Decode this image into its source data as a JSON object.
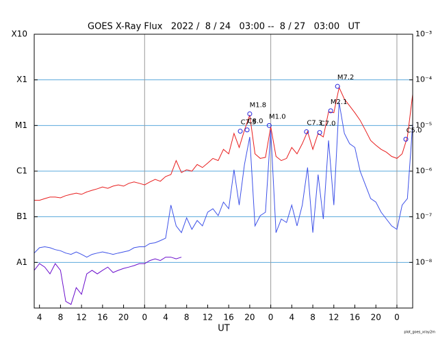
{
  "chart_data": {
    "type": "line",
    "title": "GOES X-Ray Flux   2022 /  8 / 24   03:00 --  8 / 27   03:00   UT",
    "xlabel": "UT",
    "footnote": "plot_goes_xray2m",
    "log_scale": true,
    "grid": true,
    "xlim": [
      0,
      72
    ],
    "xticks": [
      {
        "value": 1,
        "label": "4"
      },
      {
        "value": 5,
        "label": "8"
      },
      {
        "value": 9,
        "label": "12"
      },
      {
        "value": 13,
        "label": "16"
      },
      {
        "value": 17,
        "label": "20"
      },
      {
        "value": 21,
        "label": "0"
      },
      {
        "value": 25,
        "label": "4"
      },
      {
        "value": 29,
        "label": "8"
      },
      {
        "value": 33,
        "label": "12"
      },
      {
        "value": 37,
        "label": "16"
      },
      {
        "value": 41,
        "label": "20"
      },
      {
        "value": 45,
        "label": "0"
      },
      {
        "value": 49,
        "label": "4"
      },
      {
        "value": 53,
        "label": "8"
      },
      {
        "value": 57,
        "label": "12"
      },
      {
        "value": 61,
        "label": "16"
      },
      {
        "value": 65,
        "label": "20"
      },
      {
        "value": 69,
        "label": "0"
      }
    ],
    "ylim": [
      1e-09,
      0.001
    ],
    "yticks": [
      {
        "value": 0.001,
        "label": "X10"
      },
      {
        "value": 0.0001,
        "label": "X1"
      },
      {
        "value": 1e-05,
        "label": "M1"
      },
      {
        "value": 1e-06,
        "label": "C1"
      },
      {
        "value": 1e-07,
        "label": "B1"
      },
      {
        "value": 1e-08,
        "label": "A1"
      }
    ],
    "y2lim": [
      1e-09,
      0.001
    ],
    "y2ticks": [
      {
        "value": 0.001,
        "label": "10⁻³"
      },
      {
        "value": 0.0001,
        "label": "10⁻⁴"
      },
      {
        "value": 1e-05,
        "label": "10⁻⁵"
      },
      {
        "value": 1e-06,
        "label": "10⁻⁶"
      },
      {
        "value": 1e-07,
        "label": "10⁻⁷"
      },
      {
        "value": 1e-08,
        "label": "10⁻⁸"
      }
    ],
    "series": [
      {
        "color": "#e81c1c",
        "x": [
          0,
          1,
          2,
          3,
          4,
          5,
          6,
          7,
          8,
          9,
          10,
          11,
          12,
          13,
          14,
          15,
          16,
          17,
          18,
          19,
          20,
          21,
          22,
          23,
          24,
          25,
          26,
          27,
          28,
          29,
          30,
          31,
          32,
          33,
          34,
          35,
          36,
          37,
          38,
          39,
          40,
          41,
          42,
          43,
          44,
          45,
          46,
          47,
          48,
          49,
          50,
          51,
          52,
          53,
          54,
          55,
          56,
          57,
          58,
          59,
          60,
          61,
          62,
          63,
          64,
          65,
          66,
          67,
          68,
          69,
          70,
          71,
          72
        ],
        "values": [
          2.3e-07,
          2.3e-07,
          2.5e-07,
          2.7e-07,
          2.7e-07,
          2.6e-07,
          2.9e-07,
          3.1e-07,
          3.3e-07,
          3.1e-07,
          3.5e-07,
          3.8e-07,
          4.1e-07,
          4.5e-07,
          4.2e-07,
          4.7e-07,
          5e-07,
          4.7e-07,
          5.4e-07,
          5.8e-07,
          5.4e-07,
          5e-07,
          5.8e-07,
          6.6e-07,
          6e-07,
          7.6e-07,
          8.4e-07,
          1.7e-06,
          9.3e-07,
          1.07e-06,
          1e-06,
          1.4e-06,
          1.2e-06,
          1.5e-06,
          1.9e-06,
          1.7e-06,
          3e-06,
          2.4e-06,
          6.7e-06,
          3.3e-06,
          7.9e-06,
          1.7e-05,
          2.4e-06,
          1.9e-06,
          2e-06,
          9.4e-06,
          2.1e-06,
          1.7e-06,
          1.9e-06,
          3.3e-06,
          2.4e-06,
          4e-06,
          7.4e-06,
          3e-06,
          6.7e-06,
          5.6e-06,
          2e-05,
          1.9e-05,
          6.8e-05,
          3.8e-05,
          2.7e-05,
          1.9e-05,
          1.3e-05,
          7.9e-06,
          4.7e-06,
          3.7e-06,
          3e-06,
          2.6e-06,
          2.1e-06,
          1.9e-06,
          2.4e-06,
          5.6e-06,
          4.8e-05
        ]
      },
      {
        "color": "#3c50e8",
        "x": [
          0,
          1,
          2,
          3,
          4,
          5,
          6,
          7,
          8,
          9,
          10,
          11,
          12,
          13,
          14,
          15,
          16,
          17,
          18,
          19,
          20,
          21,
          22,
          23,
          24,
          25,
          26,
          27,
          28,
          29,
          30,
          31,
          32,
          33,
          34,
          35,
          36,
          37,
          38,
          39,
          40,
          41,
          42,
          43,
          44,
          45,
          46,
          47,
          48,
          49,
          50,
          51,
          52,
          53,
          54,
          55,
          56,
          57,
          58,
          59,
          60,
          61,
          62,
          63,
          64,
          65,
          66,
          67,
          68,
          69,
          70,
          71,
          72
        ],
        "values": [
          1.6e-08,
          2.1e-08,
          2.2e-08,
          2.1e-08,
          1.9e-08,
          1.8e-08,
          1.6e-08,
          1.5e-08,
          1.7e-08,
          1.5e-08,
          1.3e-08,
          1.5e-08,
          1.6e-08,
          1.7e-08,
          1.6e-08,
          1.5e-08,
          1.6e-08,
          1.7e-08,
          1.8e-08,
          2.1e-08,
          2.2e-08,
          2.2e-08,
          2.6e-08,
          2.7e-08,
          3e-08,
          3.4e-08,
          1.8e-07,
          6.3e-08,
          4.5e-08,
          9.5e-08,
          5.3e-08,
          8.3e-08,
          6.3e-08,
          1.26e-07,
          1.5e-07,
          1.06e-07,
          2.1e-07,
          1.5e-07,
          1.07e-06,
          1.8e-07,
          1.4e-06,
          5.6e-06,
          6.3e-08,
          1.06e-07,
          1.26e-07,
          7.9e-06,
          4.5e-08,
          8.9e-08,
          7.5e-08,
          1.8e-07,
          6.3e-08,
          1.8e-07,
          1.2e-06,
          4.5e-08,
          8.4e-07,
          8.9e-08,
          4.7e-06,
          1.8e-07,
          3.2e-05,
          6.7e-06,
          4e-06,
          3.3e-06,
          1e-06,
          5e-07,
          2.5e-07,
          2.1e-07,
          1.26e-07,
          8.9e-08,
          6.3e-08,
          5.3e-08,
          1.8e-07,
          2.5e-07,
          1.1e-05
        ]
      },
      {
        "color": "#6a0dcc",
        "x": [
          0,
          1,
          2,
          3,
          4,
          5,
          6,
          7,
          8,
          9,
          10,
          11,
          12,
          13,
          14,
          15,
          16,
          17,
          18,
          19,
          20,
          21,
          22,
          23,
          24,
          25,
          26,
          27,
          28
        ],
        "values": [
          6.7e-09,
          9.4e-09,
          7.9e-09,
          5.6e-09,
          9.4e-09,
          6.7e-09,
          1.4e-09,
          1.2e-09,
          2.8e-09,
          2e-09,
          5.6e-09,
          6.7e-09,
          5.6e-09,
          6.7e-09,
          7.9e-09,
          6e-09,
          6.7e-09,
          7.4e-09,
          7.9e-09,
          8.5e-09,
          9.4e-09,
          9.4e-09,
          1.1e-08,
          1.2e-08,
          1.1e-08,
          1.3e-08,
          1.3e-08,
          1.2e-08,
          1.3e-08
        ]
      }
    ],
    "annotations": [
      {
        "x": 39.2,
        "value": 7.5e-06,
        "label": "C7.5"
      },
      {
        "x": 40.5,
        "value": 8e-06,
        "label": "C8.0"
      },
      {
        "x": 41.0,
        "value": 1.8e-05,
        "label": "M1.8"
      },
      {
        "x": 44.7,
        "value": 1e-05,
        "label": "M1.0"
      },
      {
        "x": 51.8,
        "value": 7.3e-06,
        "label": "C7.3"
      },
      {
        "x": 54.3,
        "value": 7e-06,
        "label": "C7.0"
      },
      {
        "x": 56.4,
        "value": 2.1e-05,
        "label": "M2.1"
      },
      {
        "x": 57.7,
        "value": 7.2e-05,
        "label": "M7.2"
      },
      {
        "x": 70.7,
        "value": 5e-06,
        "label": "C5.0"
      }
    ]
  }
}
